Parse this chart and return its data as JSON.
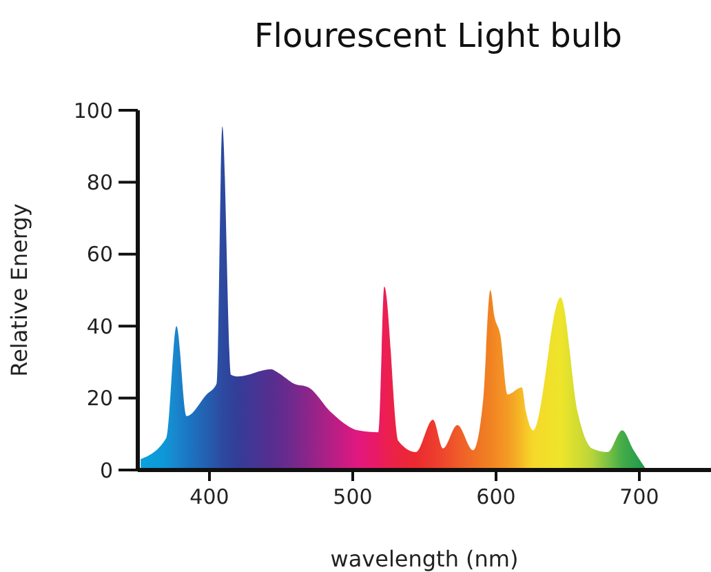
{
  "chart_data": {
    "type": "area",
    "title": "Flourescent Light bulb",
    "xlabel": "wavelength (nm)",
    "ylabel": "Relative Energy",
    "x": [
      352,
      370,
      377,
      384,
      398,
      405,
      409,
      415,
      420,
      443,
      448,
      459,
      469,
      485,
      504,
      518,
      522,
      532,
      544,
      556,
      563,
      573,
      584,
      591,
      596,
      599,
      603,
      608,
      618,
      621,
      626,
      645,
      657,
      667,
      678,
      688,
      696,
      705
    ],
    "values": [
      3,
      9,
      40,
      15,
      21,
      24,
      95.5,
      26.5,
      26,
      28,
      27,
      24,
      23,
      16,
      11,
      10.5,
      51,
      8,
      5,
      14,
      6,
      12.5,
      5.5,
      19.5,
      50,
      42.5,
      37.5,
      21,
      23,
      16,
      11,
      48,
      16,
      6,
      5,
      11,
      5.5,
      0
    ],
    "colors": [
      "#0aa2dc",
      "#0f95d6",
      "#1a85cc",
      "#1a78c4",
      "#2360b0",
      "#2a52a6",
      "#2c4aa0",
      "#2f439b",
      "#343c98",
      "#552f90",
      "#5d2d8e",
      "#74298c",
      "#8c258a",
      "#b41f86",
      "#e2187f",
      "#ea1a62",
      "#ec1e55",
      "#ec2340",
      "#ec2a30",
      "#ed3a2e",
      "#ee472c",
      "#ef5a29",
      "#f06e25",
      "#f07a23",
      "#f18222",
      "#f28823",
      "#f39024",
      "#f49a24",
      "#f6bb27",
      "#f7c828",
      "#f6d82a",
      "#eee52b",
      "#d3dc31",
      "#b8d43a",
      "#7cc143",
      "#45ac48",
      "#30a24a",
      "#1d9a4a"
    ],
    "xlim": [
      350,
      750
    ],
    "xticks": [
      400,
      500,
      600,
      700
    ],
    "ylim": [
      0,
      100
    ],
    "yticks": [
      0,
      20,
      40,
      60,
      80,
      100
    ]
  }
}
